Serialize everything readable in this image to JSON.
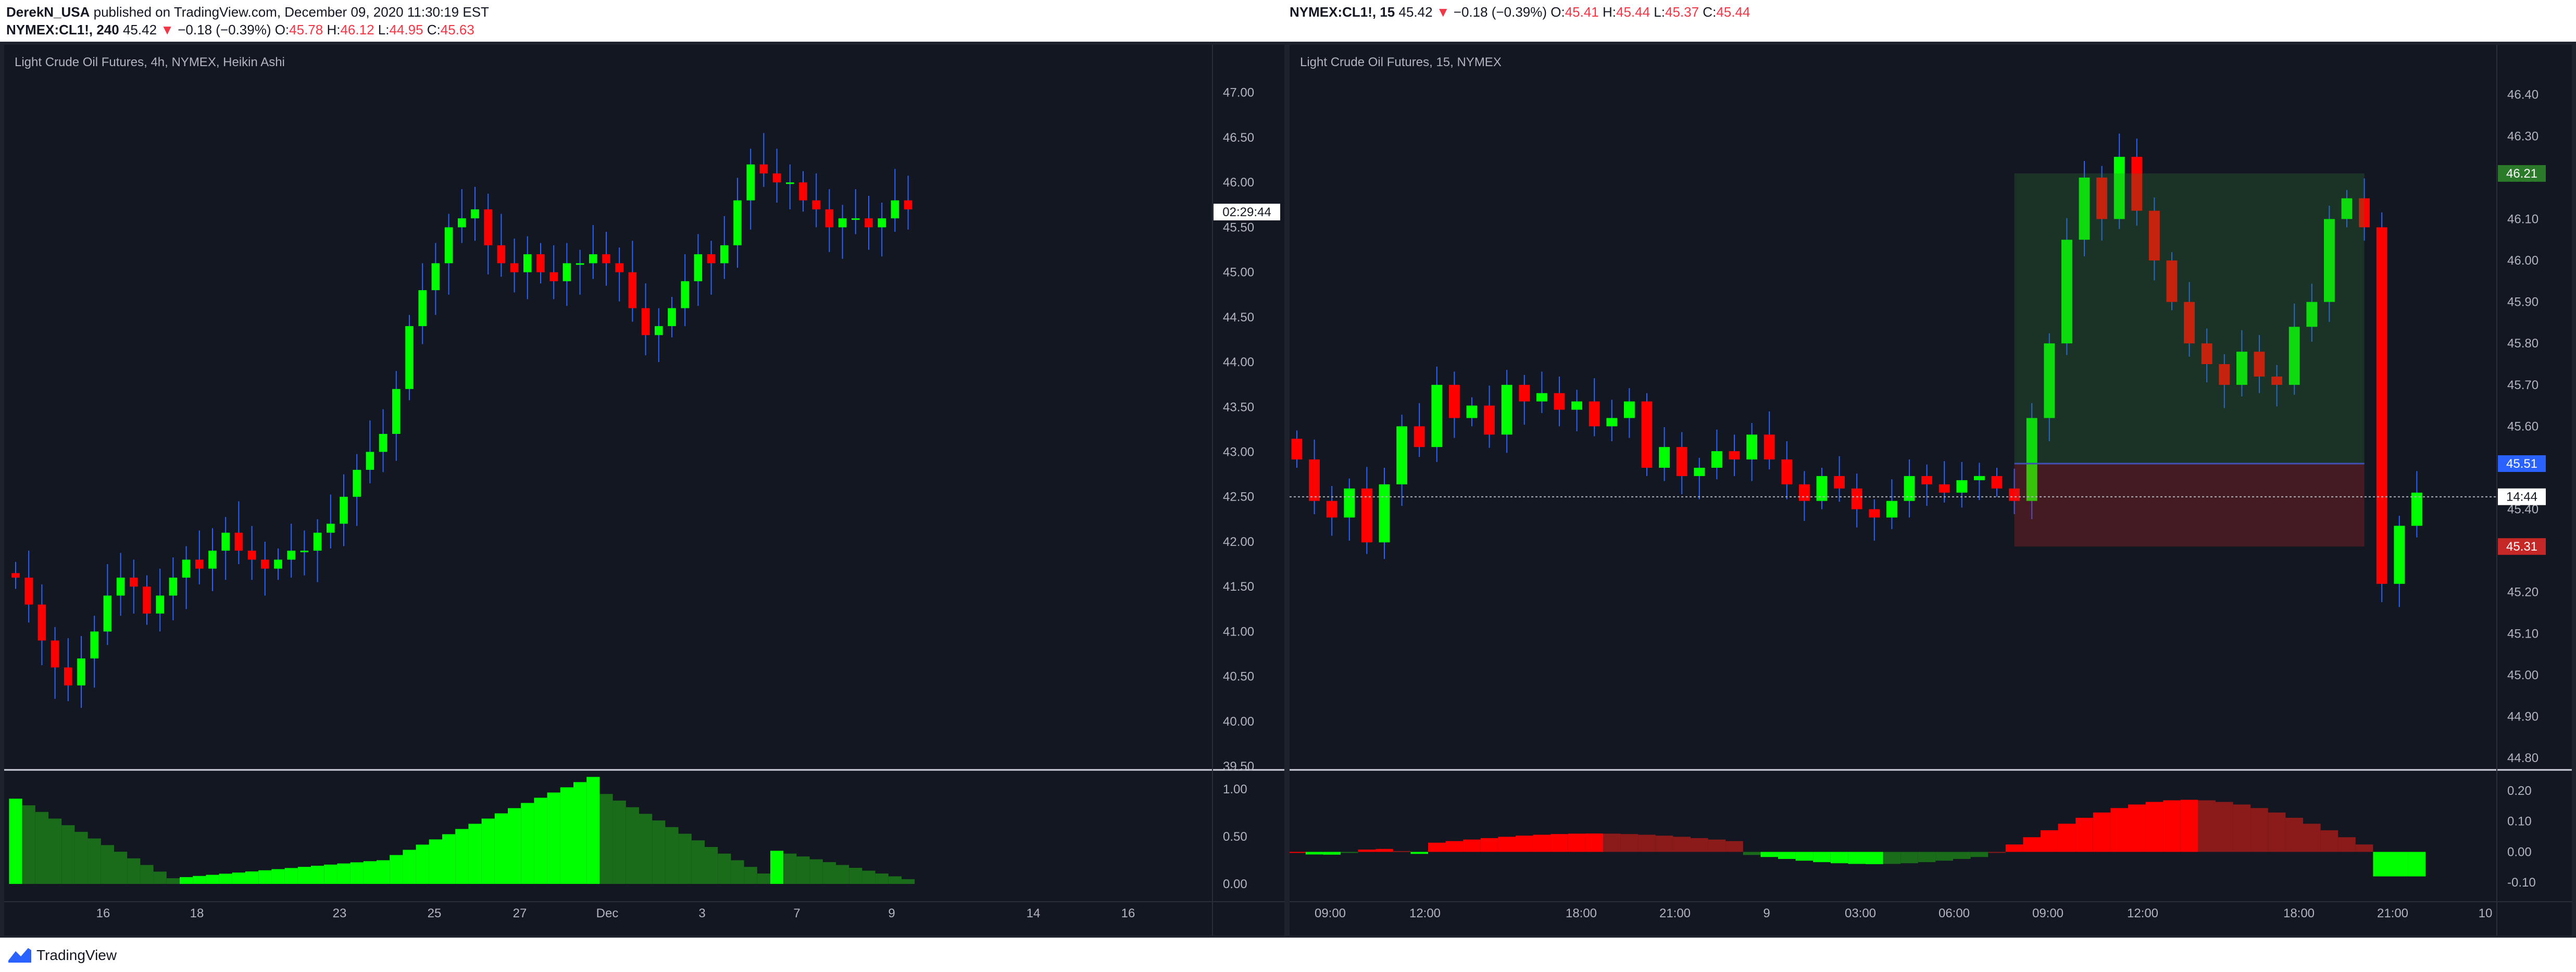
{
  "header": {
    "publisher": "DerekN_USA",
    "published_text": "published on TradingView.com, December 09, 2020 11:30:19 EST"
  },
  "left_quote": {
    "symbol": "NYMEX:CL1!, 240",
    "price": "45.42",
    "change": "−0.18 (−0.39%)",
    "o": "45.78",
    "h": "46.12",
    "l": "44.95",
    "c": "45.63"
  },
  "right_quote": {
    "symbol": "NYMEX:CL1!, 15",
    "price": "45.42",
    "change": "−0.18 (−0.39%)",
    "o": "45.41",
    "h": "45.44",
    "l": "45.37",
    "c": "45.44"
  },
  "footer": {
    "brand": "TradingView"
  },
  "colors": {
    "up": "#00ff00",
    "down": "#ff0000",
    "dark_up": "#1a6b1a",
    "dark_down": "#8b1a1a",
    "wick": "#2962ff",
    "bg": "#131722"
  },
  "chart_data": [
    {
      "type": "candlestick",
      "title": "Light Crude Oil Futures, 4h, NYMEX, Heikin Ashi",
      "ylim": [
        39.5,
        47.3
      ],
      "y_ticks": [
        "47.00",
        "46.50",
        "46.00",
        "45.50",
        "45.00",
        "44.50",
        "44.00",
        "43.50",
        "43.00",
        "42.50",
        "42.00",
        "41.50",
        "41.00",
        "40.50",
        "40.00",
        "39.50"
      ],
      "x_ticks": [
        "16",
        "18",
        "23",
        "25",
        "27",
        "Dec",
        "3",
        "7",
        "9",
        "14",
        "16"
      ],
      "countdown_label": "02:29:44",
      "countdown_value": 45.67,
      "close_series": [
        41.6,
        41.3,
        40.9,
        40.6,
        40.4,
        40.7,
        41.0,
        41.4,
        41.6,
        41.5,
        41.2,
        41.4,
        41.6,
        41.8,
        41.7,
        41.9,
        42.1,
        41.9,
        41.8,
        41.7,
        41.8,
        41.9,
        41.9,
        42.1,
        42.2,
        42.5,
        42.8,
        43.0,
        43.2,
        43.7,
        44.4,
        44.8,
        45.1,
        45.5,
        45.6,
        45.7,
        45.3,
        45.1,
        45.0,
        45.2,
        45.0,
        44.9,
        45.1,
        45.1,
        45.2,
        45.1,
        45.0,
        44.6,
        44.3,
        44.4,
        44.6,
        44.9,
        45.2,
        45.1,
        45.3,
        45.8,
        46.2,
        46.1,
        46.0,
        46.0,
        45.8,
        45.7,
        45.5,
        45.6,
        45.6,
        45.5,
        45.6,
        45.8,
        45.7
      ],
      "oscillator": {
        "ylim": [
          -0.05,
          1.05
        ],
        "y_ticks": [
          "1.00",
          "0.50",
          "0.00"
        ]
      }
    },
    {
      "type": "candlestick",
      "title": "Light Crude Oil Futures, 15, NYMEX",
      "ylim": [
        44.78,
        46.47
      ],
      "y_ticks": [
        "46.40",
        "46.30",
        "46.20",
        "46.10",
        "46.00",
        "45.90",
        "45.80",
        "45.70",
        "45.60",
        "45.50",
        "45.40",
        "45.30",
        "45.20",
        "45.10",
        "45.00",
        "44.90",
        "44.80"
      ],
      "x_ticks": [
        "09:00",
        "12:00",
        "18:00",
        "21:00",
        "9",
        "03:00",
        "06:00",
        "09:00",
        "12:00",
        "18:00",
        "21:00",
        "10"
      ],
      "price_labels": [
        {
          "text": "46.21",
          "value": 46.21,
          "color": "#2a7a2a"
        },
        {
          "text": "45.51",
          "value": 45.51,
          "color": "#2962ff"
        },
        {
          "text": "14:44",
          "value": 45.43,
          "color": "#ffffff"
        },
        {
          "text": "45.31",
          "value": 45.31,
          "color": "#c62828"
        }
      ],
      "trade_box": {
        "entry": 45.51,
        "target": 46.21,
        "stop": 45.31
      },
      "close_series": [
        45.52,
        45.42,
        45.38,
        45.45,
        45.32,
        45.46,
        45.6,
        45.55,
        45.7,
        45.62,
        45.65,
        45.58,
        45.7,
        45.66,
        45.68,
        45.64,
        45.66,
        45.6,
        45.62,
        45.66,
        45.5,
        45.55,
        45.48,
        45.5,
        45.54,
        45.52,
        45.58,
        45.52,
        45.46,
        45.42,
        45.48,
        45.45,
        45.4,
        45.38,
        45.42,
        45.48,
        45.46,
        45.44,
        45.47,
        45.48,
        45.45,
        45.42,
        45.62,
        45.8,
        46.05,
        46.2,
        46.1,
        46.25,
        46.12,
        46.0,
        45.9,
        45.8,
        45.75,
        45.7,
        45.78,
        45.72,
        45.7,
        45.84,
        45.9,
        46.1,
        46.15,
        46.08,
        45.22,
        45.36,
        45.44
      ],
      "oscillator": {
        "ylim": [
          -0.12,
          0.22
        ],
        "y_ticks": [
          "0.20",
          "0.10",
          "0.00",
          "-0.10"
        ]
      }
    }
  ]
}
